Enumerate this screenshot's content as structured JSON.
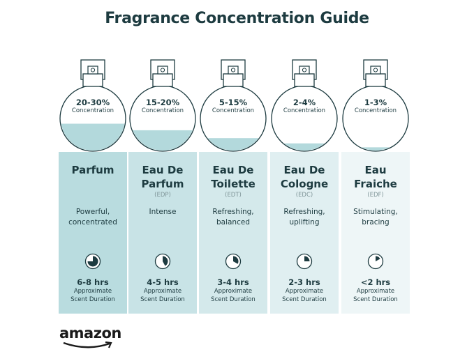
{
  "title": "Fragrance Concentration Guide",
  "colors": {
    "text": "#1d3b40",
    "liquid": "#b3d9dc",
    "panel_start": "#b9dcdf",
    "panel_end": "#eef6f7"
  },
  "types": [
    {
      "concentration": "20-30%",
      "concentration_label": "Concentration",
      "fill_level": 0.42,
      "name_line1": "Parfum",
      "name_line2": "",
      "abbr": "",
      "desc_line1": "Powerful,",
      "desc_line2": "concentrated",
      "duration_fraction": 0.75,
      "hours": "6-8 hrs",
      "approx_line1": "Approximate",
      "approx_line2": "Scent Duration",
      "clock_icon": "clock-pie-icon"
    },
    {
      "concentration": "15-20%",
      "concentration_label": "Concentration",
      "fill_level": 0.32,
      "name_line1": "Eau De",
      "name_line2": "Parfum",
      "abbr": "(EDP)",
      "desc_line1": "Intense",
      "desc_line2": "",
      "duration_fraction": 0.42,
      "hours": "4-5 hrs",
      "approx_line1": "Approximate",
      "approx_line2": "Scent Duration",
      "clock_icon": "clock-pie-icon"
    },
    {
      "concentration": "5-15%",
      "concentration_label": "Concentration",
      "fill_level": 0.2,
      "name_line1": "Eau De",
      "name_line2": "Toilette",
      "abbr": "(EDT)",
      "desc_line1": "Refreshing,",
      "desc_line2": "balanced",
      "duration_fraction": 0.33,
      "hours": "3-4 hrs",
      "approx_line1": "Approximate",
      "approx_line2": "Scent Duration",
      "clock_icon": "clock-pie-icon"
    },
    {
      "concentration": "2-4%",
      "concentration_label": "Concentration",
      "fill_level": 0.12,
      "name_line1": "Eau De",
      "name_line2": "Cologne",
      "abbr": "(EDC)",
      "desc_line1": "Refreshing,",
      "desc_line2": "uplifting",
      "duration_fraction": 0.25,
      "hours": "2-3 hrs",
      "approx_line1": "Approximate",
      "approx_line2": "Scent Duration",
      "clock_icon": "clock-pie-icon"
    },
    {
      "concentration": "1-3%",
      "concentration_label": "Concentration",
      "fill_level": 0.06,
      "name_line1": "Eau",
      "name_line2": "Fraiche",
      "abbr": "(EDF)",
      "desc_line1": "Stimulating,",
      "desc_line2": "bracing",
      "duration_fraction": 0.17,
      "hours": "<2 hrs",
      "approx_line1": "Approximate",
      "approx_line2": "Scent Duration",
      "clock_icon": "clock-pie-icon"
    }
  ],
  "logo": "amazon"
}
